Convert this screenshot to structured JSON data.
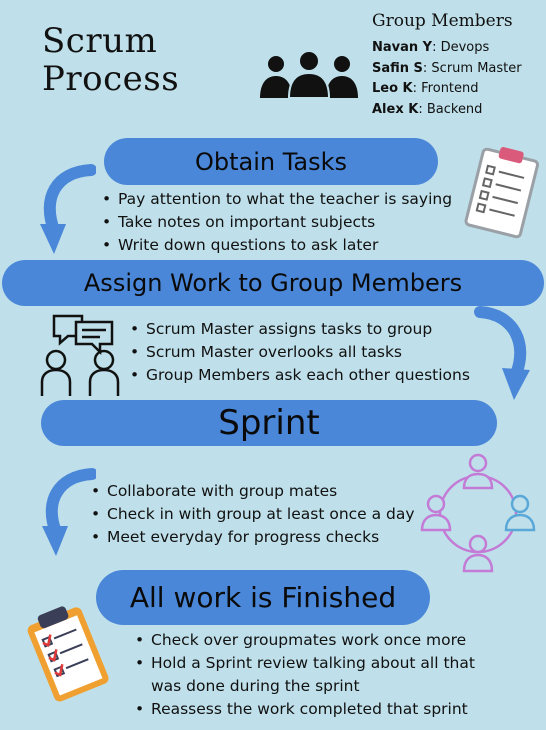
{
  "title": {
    "line1": "Scrum",
    "line2": "Process"
  },
  "group": {
    "title": "Group Members",
    "members": [
      {
        "name": "Navan Y",
        "role": ": Devops"
      },
      {
        "name": "Safin S",
        "role": ": Scrum Master"
      },
      {
        "name": "Leo K",
        "role": ": Frontend"
      },
      {
        "name": "Alex K",
        "role": ": Backend"
      }
    ]
  },
  "steps": [
    {
      "heading": "Obtain Tasks",
      "bullets": [
        "Pay attention to what the teacher is saying",
        "Take notes on important subjects",
        "Write down questions to ask later"
      ]
    },
    {
      "heading": "Assign Work to Group Members",
      "bullets": [
        "Scrum Master assigns tasks to group",
        "Scrum Master overlooks all tasks",
        "Group Members ask each other questions"
      ]
    },
    {
      "heading": "Sprint",
      "bullets": [
        "Collaborate with group mates",
        "Check in with group at least once a day",
        "Meet everyday for progress checks"
      ]
    },
    {
      "heading": "All work is Finished",
      "bullets": [
        "Check over groupmates work once more",
        "Hold a Sprint review talking about all that was done during the sprint",
        "Reassess the work completed that sprint"
      ]
    }
  ],
  "colors": {
    "background": "#bfe0ea",
    "pill": "#4a87d8",
    "arrow": "#4a87d8",
    "people": "#111111"
  },
  "icons": [
    "group-people-icon",
    "clipboard-checklist-icon",
    "discussion-people-icon",
    "team-cycle-icon",
    "clipboard-checked-icon",
    "curved-arrow-icon"
  ]
}
